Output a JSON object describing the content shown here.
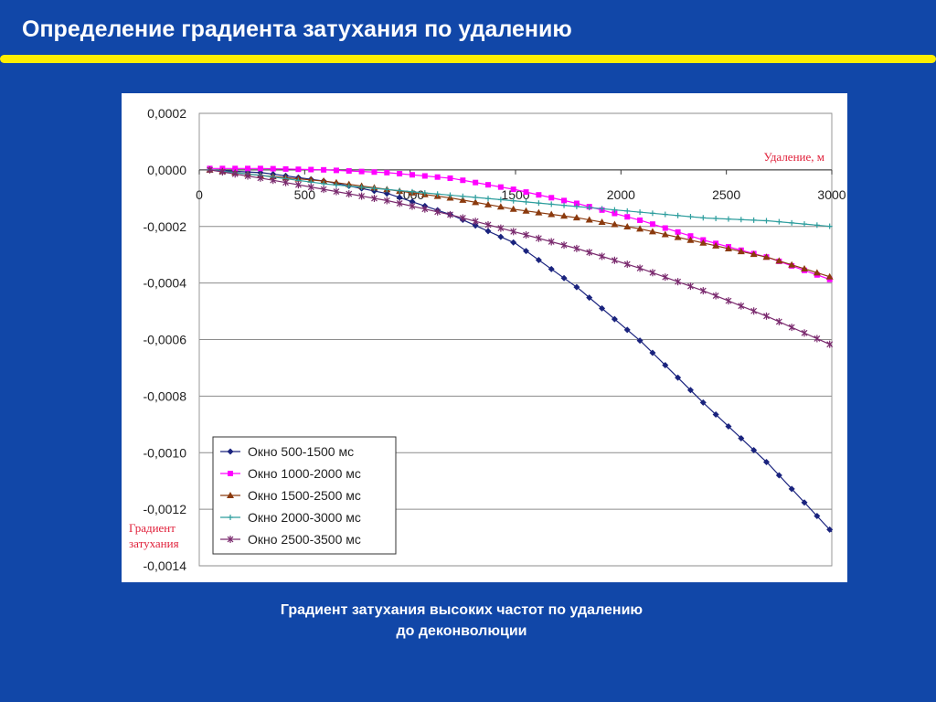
{
  "slide": {
    "title": "Определение градиента затухания по удалению",
    "caption_line1": "Градиент затухания высоких частот по удалению",
    "caption_line2": "до деконволюции"
  },
  "colors": {
    "background": "#1147a8",
    "title_rule": "#ffee00",
    "axis_label": "#e0203a"
  },
  "chart_data": {
    "type": "line",
    "x_axis_label": "Удаление, м",
    "y_axis_label_line1": "Градиент",
    "y_axis_label_line2": "затухания",
    "xlim": [
      0,
      3000
    ],
    "ylim": [
      -0.0014,
      0.0002
    ],
    "x_ticks": [
      "0",
      "500",
      "1000",
      "1500",
      "2000",
      "2500",
      "3000"
    ],
    "x_tick_values": [
      0,
      500,
      1000,
      1500,
      2000,
      2500,
      3000
    ],
    "y_ticks": [
      "0,0002",
      "0,0000",
      "-0,0002",
      "-0,0004",
      "-0,0006",
      "-0,0008",
      "-0,0010",
      "-0,0012",
      "-0,0014"
    ],
    "y_tick_values": [
      0.0002,
      0,
      -0.0002,
      -0.0004,
      -0.0006,
      -0.0008,
      -0.001,
      -0.0012,
      -0.0014
    ],
    "grid": "horizontal",
    "legend_position": "bottom-left",
    "series": [
      {
        "name": "Окно 500-1500 мс",
        "color": "#1a237e",
        "marker": "diamond",
        "x": [
          50,
          300,
          600,
          900,
          1200,
          1500,
          1800,
          2100,
          2400,
          2700,
          3000
        ],
        "y": [
          0,
          -1e-05,
          -4e-05,
          -8.5e-05,
          -0.00016,
          -0.00026,
          -0.00042,
          -0.00061,
          -0.00083,
          -0.00104,
          -0.00128
        ]
      },
      {
        "name": "Окно 1000-2000 мс",
        "color": "#ff00ff",
        "marker": "square",
        "x": [
          50,
          300,
          600,
          900,
          1200,
          1500,
          1800,
          2100,
          2400,
          2700,
          3000
        ],
        "y": [
          5e-06,
          5e-06,
          0,
          -1e-05,
          -3e-05,
          -7e-05,
          -0.00012,
          -0.00018,
          -0.00025,
          -0.00031,
          -0.00039
        ]
      },
      {
        "name": "Окно 1500-2500 мс",
        "color": "#8b3a0e",
        "marker": "triangle",
        "x": [
          50,
          300,
          600,
          900,
          1200,
          1500,
          1800,
          2100,
          2400,
          2700,
          3000
        ],
        "y": [
          0,
          -2e-05,
          -4e-05,
          -7e-05,
          -0.0001,
          -0.00014,
          -0.00017,
          -0.00021,
          -0.00026,
          -0.00031,
          -0.00038
        ]
      },
      {
        "name": "Окно 2000-3000 мс",
        "color": "#2e9e9e",
        "marker": "cross",
        "x": [
          50,
          300,
          600,
          900,
          1200,
          1500,
          1800,
          2100,
          2400,
          2700,
          3000
        ],
        "y": [
          0,
          -2e-05,
          -5e-05,
          -7e-05,
          -9e-05,
          -0.00011,
          -0.00013,
          -0.00015,
          -0.00017,
          -0.00018,
          -0.0002
        ]
      },
      {
        "name": "Окно 2500-3500 мс",
        "color": "#7a2a6e",
        "marker": "star",
        "x": [
          50,
          300,
          600,
          900,
          1200,
          1500,
          1800,
          2100,
          2400,
          2700,
          3000
        ],
        "y": [
          0,
          -3e-05,
          -7e-05,
          -0.00011,
          -0.00016,
          -0.00022,
          -0.00028,
          -0.00035,
          -0.00043,
          -0.00052,
          -0.00062
        ]
      }
    ]
  }
}
